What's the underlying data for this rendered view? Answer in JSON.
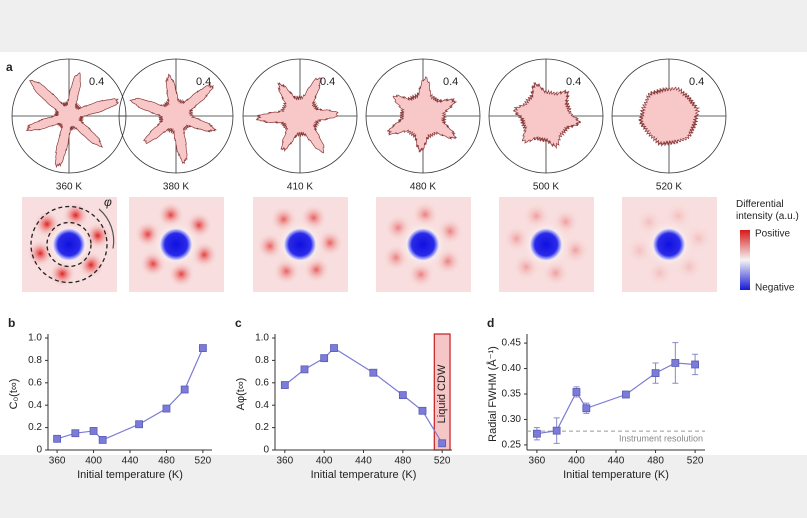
{
  "chart_data": [
    {
      "type": "polar",
      "panel": "a",
      "rticks": [
        0.4
      ],
      "categories": [
        "360 K",
        "380 K",
        "410 K",
        "480 K",
        "500 K",
        "520 K"
      ],
      "annotation": "φ",
      "color": "#f8c8c8",
      "colorbar_title": "Differential intensity (a.u.)",
      "colorbar_labels": [
        "Positive",
        "Negative"
      ]
    },
    {
      "type": "line",
      "panel": "b",
      "ylabel": "C₀(t∞)",
      "xlabel": "Initial temperature (K)",
      "color": "#7b7bd8",
      "x": [
        360,
        380,
        400,
        410,
        450,
        480,
        500,
        520
      ],
      "values": [
        0.1,
        0.15,
        0.17,
        0.09,
        0.23,
        0.37,
        0.54,
        0.91
      ],
      "xlim": [
        350,
        530
      ],
      "xticks": [
        360,
        400,
        440,
        480,
        520
      ],
      "ylim": [
        0,
        1
      ],
      "yticks": [
        0,
        0.2,
        0.4,
        0.6,
        0.8,
        {
          "value": 1,
          "label": "1.0"
        }
      ]
    },
    {
      "type": "line",
      "panel": "c",
      "ylabel": "Aφ(t∞)",
      "xlabel": "Initial temperature (K)",
      "color": "#7b7bd8",
      "x": [
        360,
        380,
        400,
        410,
        450,
        480,
        500,
        520
      ],
      "values": [
        0.58,
        0.72,
        0.82,
        0.91,
        0.69,
        0.49,
        0.35,
        0.06
      ],
      "xlim": [
        350,
        530
      ],
      "xticks": [
        360,
        400,
        440,
        480,
        520
      ],
      "ylim": [
        0,
        1
      ],
      "yticks": [
        0,
        0.2,
        0.4,
        0.6,
        0.8,
        {
          "value": 1,
          "label": "1.0"
        }
      ],
      "span": [
        512,
        528
      ],
      "span_label": "Liquid CDW"
    },
    {
      "type": "line",
      "panel": "d",
      "ylabel": "Radial FWHM (Å⁻¹)",
      "xlabel": "Initial temperature (K)",
      "color": "#7b7bd8",
      "x": [
        360,
        380,
        400,
        410,
        450,
        480,
        500,
        520
      ],
      "values": [
        0.272,
        0.278,
        0.354,
        0.322,
        0.349,
        0.391,
        0.411,
        0.408
      ],
      "errors": [
        0.012,
        0.025,
        0.01,
        0.01,
        0.006,
        0.02,
        0.04,
        0.02
      ],
      "xlim": [
        350,
        530
      ],
      "xticks": [
        360,
        400,
        440,
        480,
        520
      ],
      "ylim": [
        0.24,
        0.46
      ],
      "yticks": [
        0.25,
        {
          "value": 0.3,
          "label": "0.30"
        },
        0.35,
        {
          "value": 0.4,
          "label": "0.40"
        },
        0.45
      ],
      "hline": 0.277,
      "hline_label": "Instrument resolution"
    }
  ]
}
